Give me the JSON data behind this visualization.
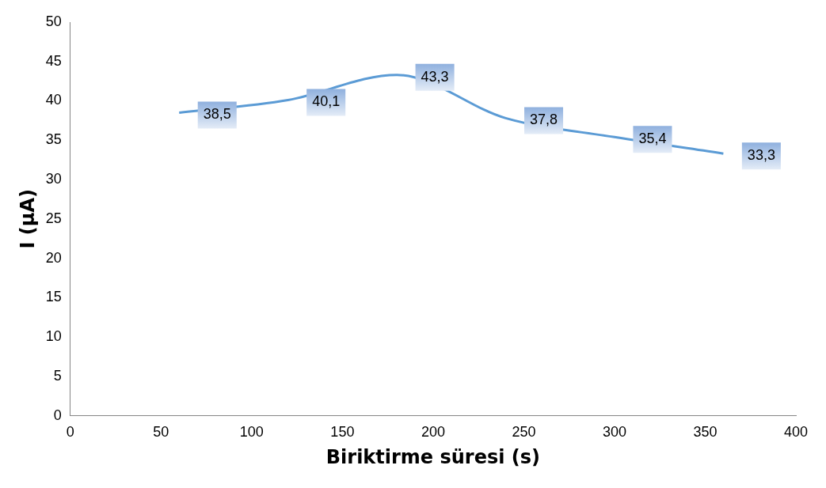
{
  "chart_data": {
    "type": "line",
    "xlabel": "Biriktirme süresi (s)",
    "ylabel": "I (µA)",
    "x": [
      60,
      120,
      180,
      240,
      300,
      360
    ],
    "series": [
      {
        "color": "#5b9bd5",
        "values": [
          38.5,
          40.1,
          43.3,
          37.8,
          35.4,
          33.3
        ],
        "value_labels": [
          "38,5",
          "40,1",
          "43,3",
          "37,8",
          "35,4",
          "33,3"
        ]
      }
    ],
    "xlim": [
      0,
      400
    ],
    "xticks": [
      0,
      50,
      100,
      150,
      200,
      250,
      300,
      350,
      400
    ],
    "ylim": [
      0,
      50
    ],
    "yticks": [
      0,
      5,
      10,
      15,
      20,
      25,
      30,
      35,
      40,
      45,
      50
    ],
    "grid": false,
    "legend": false,
    "marker": "none",
    "line_style": "solid"
  }
}
